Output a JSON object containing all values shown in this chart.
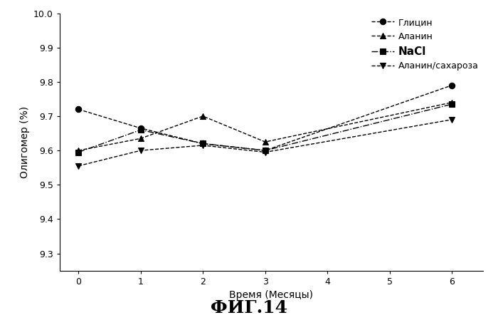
{
  "x": [
    0,
    1,
    2,
    3,
    6
  ],
  "series": {
    "Глицин": [
      9.72,
      9.665,
      9.62,
      9.6,
      9.79
    ],
    "Аланин": [
      9.6,
      9.635,
      9.7,
      9.625,
      9.74
    ],
    "NaCl": [
      9.595,
      9.66,
      9.62,
      9.6,
      9.735
    ],
    "Аланин/сахароза": [
      9.555,
      9.6,
      9.615,
      9.595,
      9.69
    ]
  },
  "markers": {
    "Глицин": "o",
    "Аланин": "^",
    "NaCl": "s",
    "Аланин/сахароза": "v"
  },
  "linestyles": {
    "Глицин": "--",
    "Аланин": "--",
    "NaCl": "-.",
    "Аланин/сахароза": "--"
  },
  "colors": {
    "Глицин": "#000000",
    "Аланин": "#000000",
    "NaCl": "#000000",
    "Аланин/сахароза": "#000000"
  },
  "xlabel": "Время (Месяцы)",
  "ylabel": "Олигомер (%)",
  "ylim": [
    9.25,
    10.0
  ],
  "xlim": [
    -0.3,
    6.5
  ],
  "xticks": [
    0,
    1,
    2,
    3,
    4,
    5,
    6
  ],
  "yticks": [
    9.3,
    9.4,
    9.5,
    9.6,
    9.7,
    9.8,
    9.9,
    10.0
  ],
  "figcaption": "ФИГ.14",
  "legend_bold_items": [
    "NaCl"
  ],
  "background_color": "#ffffff",
  "series_order": [
    "Глицин",
    "Аланин",
    "NaCl",
    "Аланин/сахароза"
  ]
}
